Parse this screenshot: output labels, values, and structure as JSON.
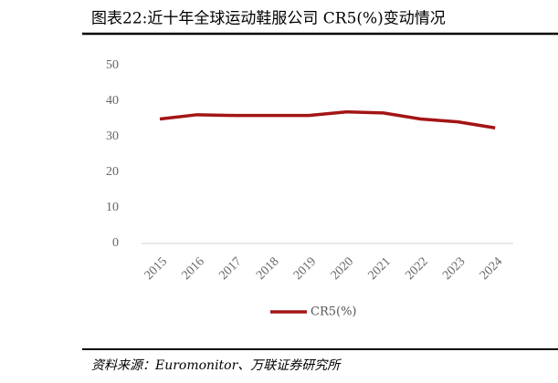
{
  "chart_data": {
    "type": "line",
    "title": "图表22:近十年全球运动鞋服公司 CR5(%)变动情况",
    "source": "资料来源：Euromonitor、万联证券研究所",
    "categories": [
      "2015",
      "2016",
      "2017",
      "2018",
      "2019",
      "2020",
      "2021",
      "2022",
      "2023",
      "2024"
    ],
    "series": [
      {
        "name": "CR5(%)",
        "color": "#a31515",
        "values": [
          35.0,
          36.2,
          36.0,
          36.0,
          36.0,
          37.0,
          36.7,
          35.0,
          34.2,
          32.5
        ]
      }
    ],
    "ylim": [
      0,
      50
    ],
    "yticks": [
      0,
      10,
      20,
      30,
      40,
      50
    ],
    "grid": false,
    "legend": "bottom"
  }
}
